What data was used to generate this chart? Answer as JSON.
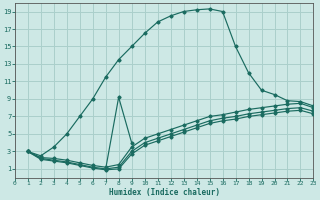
{
  "xlabel": "Humidex (Indice chaleur)",
  "bg_color": "#cde8e5",
  "grid_color": "#aacfcb",
  "line_color": "#1a6b60",
  "xlim": [
    0,
    23
  ],
  "ylim": [
    0,
    20
  ],
  "xticks": [
    0,
    1,
    2,
    3,
    4,
    5,
    6,
    7,
    8,
    9,
    10,
    11,
    12,
    13,
    14,
    15,
    16,
    17,
    18,
    19,
    20,
    21,
    22,
    23
  ],
  "yticks": [
    1,
    3,
    5,
    7,
    9,
    11,
    13,
    15,
    17,
    19
  ],
  "lines": [
    {
      "x": [
        1,
        2,
        3,
        4,
        5,
        6,
        7,
        8,
        9,
        10,
        11,
        12,
        13,
        14,
        15,
        16,
        17,
        18,
        19,
        20,
        21,
        22,
        23
      ],
      "y": [
        3.0,
        2.5,
        3.5,
        5.0,
        7.0,
        9.0,
        11.5,
        13.5,
        15.0,
        16.5,
        17.8,
        18.5,
        19.0,
        19.2,
        19.3,
        19.0,
        15.0,
        12.0,
        10.0,
        9.5,
        8.8,
        8.7,
        8.2
      ]
    },
    {
      "x": [
        1,
        2,
        3,
        4,
        5,
        6,
        7,
        8,
        9,
        10,
        11,
        12,
        13,
        14,
        15,
        16,
        17,
        18,
        19,
        20,
        21,
        22,
        23
      ],
      "y": [
        3.0,
        2.3,
        2.2,
        2.0,
        1.7,
        1.4,
        1.2,
        1.5,
        3.5,
        4.5,
        5.0,
        5.5,
        6.0,
        6.5,
        7.0,
        7.2,
        7.5,
        7.8,
        8.0,
        8.2,
        8.4,
        8.5,
        8.0
      ]
    },
    {
      "x": [
        1,
        2,
        3,
        4,
        5,
        6,
        7,
        8,
        9,
        10,
        11,
        12,
        13,
        14,
        15,
        16,
        17,
        18,
        19,
        20,
        21,
        22,
        23
      ],
      "y": [
        3.0,
        2.2,
        2.0,
        1.8,
        1.5,
        1.2,
        1.0,
        1.2,
        3.0,
        4.0,
        4.5,
        5.0,
        5.5,
        6.0,
        6.5,
        6.8,
        7.0,
        7.3,
        7.5,
        7.7,
        7.9,
        8.0,
        7.6
      ]
    },
    {
      "x": [
        1,
        2,
        3,
        4,
        5,
        6,
        7,
        8,
        9,
        10,
        11,
        12,
        13,
        14,
        15,
        16,
        17,
        18,
        19,
        20,
        21,
        22,
        23
      ],
      "y": [
        3.0,
        2.1,
        1.9,
        1.7,
        1.4,
        1.1,
        0.9,
        1.0,
        2.7,
        3.7,
        4.2,
        4.7,
        5.2,
        5.7,
        6.2,
        6.5,
        6.7,
        7.0,
        7.2,
        7.4,
        7.6,
        7.7,
        7.3
      ]
    }
  ],
  "spike": {
    "x": [
      7,
      8,
      9
    ],
    "y": [
      1.0,
      9.2,
      4.0
    ]
  }
}
